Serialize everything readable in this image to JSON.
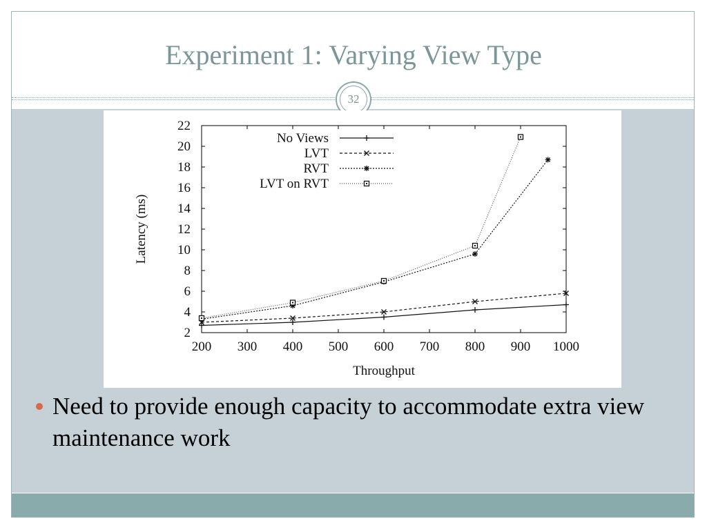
{
  "slide": {
    "title": "Experiment 1: Varying View Type",
    "page_number": "32",
    "bullets": [
      "Need to provide enough capacity to accommodate extra view maintenance work"
    ]
  },
  "colors": {
    "title": "#7a9698",
    "content_bg": "#c5d1d7",
    "footer": "#8aabab",
    "bullet": "#d8694b"
  },
  "chart_data": {
    "type": "line",
    "xlabel": "Throughput",
    "ylabel": "Latency (ms)",
    "xlim": [
      200,
      1000
    ],
    "ylim": [
      2,
      22
    ],
    "xticks": [
      200,
      300,
      400,
      500,
      600,
      700,
      800,
      900,
      1000
    ],
    "yticks": [
      2,
      4,
      6,
      8,
      10,
      12,
      14,
      16,
      18,
      20,
      22
    ],
    "legend_position": "top-left",
    "grid": false,
    "series": [
      {
        "name": "No Views",
        "marker": "plus",
        "dash": "",
        "points": [
          [
            200,
            2.7
          ],
          [
            400,
            3.0
          ],
          [
            600,
            3.5
          ],
          [
            800,
            4.2
          ],
          [
            1000,
            4.7
          ]
        ]
      },
      {
        "name": "LVT",
        "marker": "x",
        "dash": "4,3",
        "points": [
          [
            200,
            3.0
          ],
          [
            400,
            3.4
          ],
          [
            600,
            4.0
          ],
          [
            800,
            5.0
          ],
          [
            1000,
            5.8
          ]
        ]
      },
      {
        "name": "RVT",
        "marker": "star",
        "dash": "2,2",
        "points": [
          [
            200,
            3.3
          ],
          [
            400,
            4.6
          ],
          [
            600,
            6.9
          ],
          [
            800,
            9.6
          ],
          [
            960,
            18.7
          ]
        ]
      },
      {
        "name": "LVT on RVT",
        "marker": "square",
        "dash": "1,2",
        "points": [
          [
            200,
            3.4
          ],
          [
            400,
            4.9
          ],
          [
            600,
            7.0
          ],
          [
            800,
            10.4
          ],
          [
            900,
            20.9
          ]
        ]
      }
    ]
  }
}
